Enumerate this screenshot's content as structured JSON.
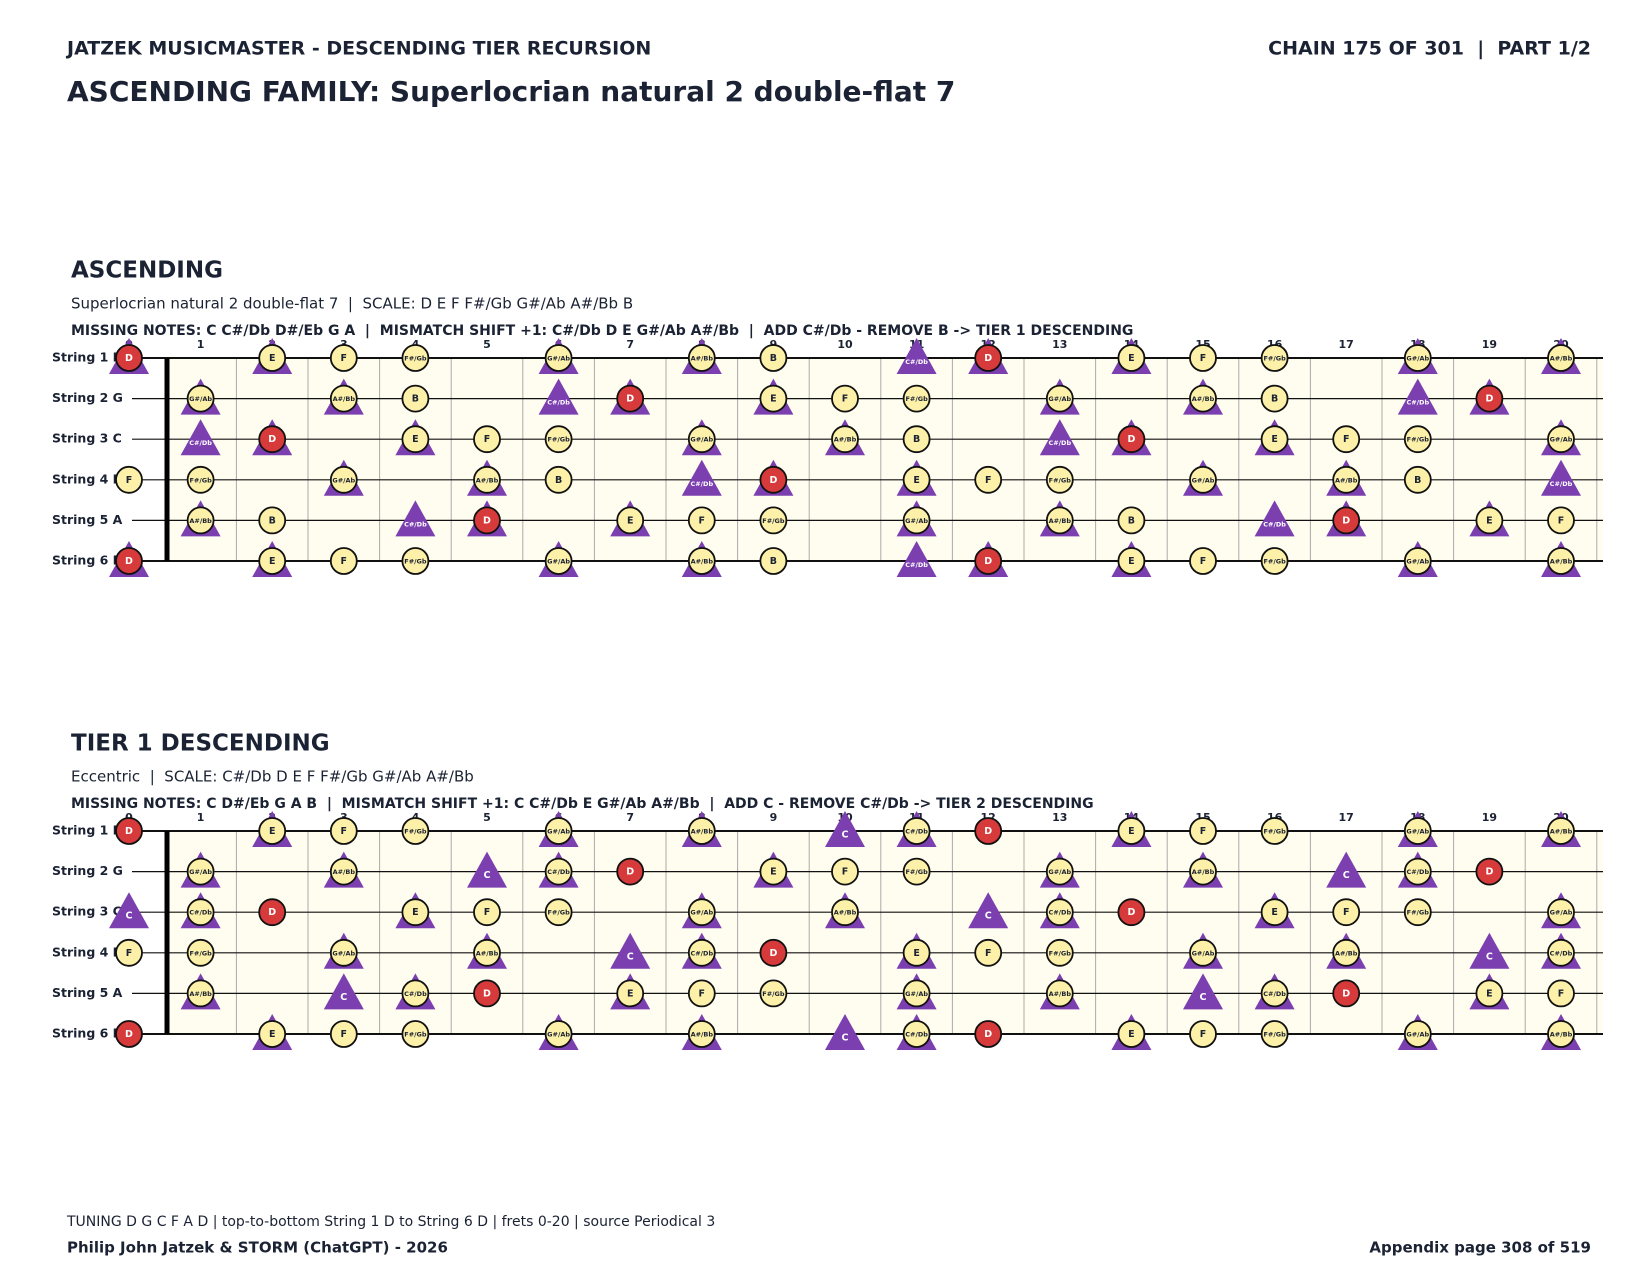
{
  "header": {
    "title": "JATZEK MUSICMASTER - DESCENDING TIER RECURSION",
    "chain": "CHAIN 175 OF 301  |  PART 1/2",
    "family": "ASCENDING FAMILY: Superlocrian natural 2 double-flat 7"
  },
  "diagrams": [
    {
      "title": "ASCENDING",
      "subtitle": "Superlocrian natural 2 double-flat 7  |  SCALE: D E F F#/Gb G#/Ab A#/Bb B",
      "notes_line": "MISSING NOTES: C C#/Db D#/Eb G A  |  MISMATCH SHIFT +1: C#/Db D E G#/Ab A#/Bb  |  ADD C#/Db - REMOVE B -> TIER 1 DESCENDING",
      "frets": [
        0,
        1,
        2,
        3,
        4,
        5,
        6,
        7,
        8,
        9,
        10,
        11,
        12,
        13,
        14,
        15,
        16,
        17,
        18,
        19,
        20
      ],
      "strings": [
        "String 1 D",
        "String 2 G",
        "String 3 C",
        "String 4 F",
        "String 5 A",
        "String 6 D"
      ],
      "cells": [
        [
          {
            "note": "D",
            "mark": "root-shift"
          },
          null,
          {
            "note": "E",
            "mark": "scale-shift"
          },
          {
            "note": "F",
            "mark": "scale"
          },
          {
            "note": "F#/Gb",
            "mark": "scale"
          },
          null,
          {
            "note": "G#/Ab",
            "mark": "scale-shift"
          },
          null,
          {
            "note": "A#/Bb",
            "mark": "scale-shift"
          },
          {
            "note": "B",
            "mark": "scale"
          },
          null,
          {
            "note": "C#/Db",
            "mark": "shift"
          },
          {
            "note": "D",
            "mark": "root-shift"
          },
          null,
          {
            "note": "E",
            "mark": "scale-shift"
          },
          {
            "note": "F",
            "mark": "scale"
          },
          {
            "note": "F#/Gb",
            "mark": "scale"
          },
          null,
          {
            "note": "G#/Ab",
            "mark": "scale-shift"
          },
          null,
          {
            "note": "A#/Bb",
            "mark": "scale-shift"
          }
        ],
        [
          null,
          {
            "note": "G#/Ab",
            "mark": "scale-shift"
          },
          null,
          {
            "note": "A#/Bb",
            "mark": "scale-shift"
          },
          {
            "note": "B",
            "mark": "scale"
          },
          null,
          {
            "note": "C#/Db",
            "mark": "shift"
          },
          {
            "note": "D",
            "mark": "root-shift"
          },
          null,
          {
            "note": "E",
            "mark": "scale-shift"
          },
          {
            "note": "F",
            "mark": "scale"
          },
          {
            "note": "F#/Gb",
            "mark": "scale"
          },
          null,
          {
            "note": "G#/Ab",
            "mark": "scale-shift"
          },
          null,
          {
            "note": "A#/Bb",
            "mark": "scale-shift"
          },
          {
            "note": "B",
            "mark": "scale"
          },
          null,
          {
            "note": "C#/Db",
            "mark": "shift"
          },
          {
            "note": "D",
            "mark": "root-shift"
          },
          null
        ],
        [
          null,
          {
            "note": "C#/Db",
            "mark": "shift"
          },
          {
            "note": "D",
            "mark": "root-shift"
          },
          null,
          {
            "note": "E",
            "mark": "scale-shift"
          },
          {
            "note": "F",
            "mark": "scale"
          },
          {
            "note": "F#/Gb",
            "mark": "scale"
          },
          null,
          {
            "note": "G#/Ab",
            "mark": "scale-shift"
          },
          null,
          {
            "note": "A#/Bb",
            "mark": "scale-shift"
          },
          {
            "note": "B",
            "mark": "scale"
          },
          null,
          {
            "note": "C#/Db",
            "mark": "shift"
          },
          {
            "note": "D",
            "mark": "root-shift"
          },
          null,
          {
            "note": "E",
            "mark": "scale-shift"
          },
          {
            "note": "F",
            "mark": "scale"
          },
          {
            "note": "F#/Gb",
            "mark": "scale"
          },
          null,
          {
            "note": "G#/Ab",
            "mark": "scale-shift"
          }
        ],
        [
          {
            "note": "F",
            "mark": "scale"
          },
          {
            "note": "F#/Gb",
            "mark": "scale"
          },
          null,
          {
            "note": "G#/Ab",
            "mark": "scale-shift"
          },
          null,
          {
            "note": "A#/Bb",
            "mark": "scale-shift"
          },
          {
            "note": "B",
            "mark": "scale"
          },
          null,
          {
            "note": "C#/Db",
            "mark": "shift"
          },
          {
            "note": "D",
            "mark": "root-shift"
          },
          null,
          {
            "note": "E",
            "mark": "scale-shift"
          },
          {
            "note": "F",
            "mark": "scale"
          },
          {
            "note": "F#/Gb",
            "mark": "scale"
          },
          null,
          {
            "note": "G#/Ab",
            "mark": "scale-shift"
          },
          null,
          {
            "note": "A#/Bb",
            "mark": "scale-shift"
          },
          {
            "note": "B",
            "mark": "scale"
          },
          null,
          {
            "note": "C#/Db",
            "mark": "shift"
          }
        ],
        [
          null,
          {
            "note": "A#/Bb",
            "mark": "scale-shift"
          },
          {
            "note": "B",
            "mark": "scale"
          },
          null,
          {
            "note": "C#/Db",
            "mark": "shift"
          },
          {
            "note": "D",
            "mark": "root-shift"
          },
          null,
          {
            "note": "E",
            "mark": "scale-shift"
          },
          {
            "note": "F",
            "mark": "scale"
          },
          {
            "note": "F#/Gb",
            "mark": "scale"
          },
          null,
          {
            "note": "G#/Ab",
            "mark": "scale-shift"
          },
          null,
          {
            "note": "A#/Bb",
            "mark": "scale-shift"
          },
          {
            "note": "B",
            "mark": "scale"
          },
          null,
          {
            "note": "C#/Db",
            "mark": "shift"
          },
          {
            "note": "D",
            "mark": "root-shift"
          },
          null,
          {
            "note": "E",
            "mark": "scale-shift"
          },
          {
            "note": "F",
            "mark": "scale"
          }
        ],
        [
          {
            "note": "D",
            "mark": "root-shift"
          },
          null,
          {
            "note": "E",
            "mark": "scale-shift"
          },
          {
            "note": "F",
            "mark": "scale"
          },
          {
            "note": "F#/Gb",
            "mark": "scale"
          },
          null,
          {
            "note": "G#/Ab",
            "mark": "scale-shift"
          },
          null,
          {
            "note": "A#/Bb",
            "mark": "scale-shift"
          },
          {
            "note": "B",
            "mark": "scale"
          },
          null,
          {
            "note": "C#/Db",
            "mark": "shift"
          },
          {
            "note": "D",
            "mark": "root-shift"
          },
          null,
          {
            "note": "E",
            "mark": "scale-shift"
          },
          {
            "note": "F",
            "mark": "scale"
          },
          {
            "note": "F#/Gb",
            "mark": "scale"
          },
          null,
          {
            "note": "G#/Ab",
            "mark": "scale-shift"
          },
          null,
          {
            "note": "A#/Bb",
            "mark": "scale-shift"
          }
        ]
      ]
    },
    {
      "title": "TIER 1 DESCENDING",
      "subtitle": "Eccentric  |  SCALE: C#/Db D E F F#/Gb G#/Ab A#/Bb",
      "notes_line": "MISSING NOTES: C D#/Eb G A B  |  MISMATCH SHIFT +1: C C#/Db E G#/Ab A#/Bb  |  ADD C - REMOVE C#/Db -> TIER 2 DESCENDING",
      "frets": [
        0,
        1,
        2,
        3,
        4,
        5,
        6,
        7,
        8,
        9,
        10,
        11,
        12,
        13,
        14,
        15,
        16,
        17,
        18,
        19,
        20
      ],
      "strings": [
        "String 1 D",
        "String 2 G",
        "String 3 C",
        "String 4 F",
        "String 5 A",
        "String 6 D"
      ],
      "cells": [
        [
          {
            "note": "D",
            "mark": "root"
          },
          null,
          {
            "note": "E",
            "mark": "scale-shift"
          },
          {
            "note": "F",
            "mark": "scale"
          },
          {
            "note": "F#/Gb",
            "mark": "scale"
          },
          null,
          {
            "note": "G#/Ab",
            "mark": "scale-shift"
          },
          null,
          {
            "note": "A#/Bb",
            "mark": "scale-shift"
          },
          null,
          {
            "note": "C",
            "mark": "shift"
          },
          {
            "note": "C#/Db",
            "mark": "scale-shift"
          },
          {
            "note": "D",
            "mark": "root"
          },
          null,
          {
            "note": "E",
            "mark": "scale-shift"
          },
          {
            "note": "F",
            "mark": "scale"
          },
          {
            "note": "F#/Gb",
            "mark": "scale"
          },
          null,
          {
            "note": "G#/Ab",
            "mark": "scale-shift"
          },
          null,
          {
            "note": "A#/Bb",
            "mark": "scale-shift"
          }
        ],
        [
          null,
          {
            "note": "G#/Ab",
            "mark": "scale-shift"
          },
          null,
          {
            "note": "A#/Bb",
            "mark": "scale-shift"
          },
          null,
          {
            "note": "C",
            "mark": "shift"
          },
          {
            "note": "C#/Db",
            "mark": "scale-shift"
          },
          {
            "note": "D",
            "mark": "root"
          },
          null,
          {
            "note": "E",
            "mark": "scale-shift"
          },
          {
            "note": "F",
            "mark": "scale"
          },
          {
            "note": "F#/Gb",
            "mark": "scale"
          },
          null,
          {
            "note": "G#/Ab",
            "mark": "scale-shift"
          },
          null,
          {
            "note": "A#/Bb",
            "mark": "scale-shift"
          },
          null,
          {
            "note": "C",
            "mark": "shift"
          },
          {
            "note": "C#/Db",
            "mark": "scale-shift"
          },
          {
            "note": "D",
            "mark": "root"
          },
          null
        ],
        [
          {
            "note": "C",
            "mark": "shift"
          },
          {
            "note": "C#/Db",
            "mark": "scale-shift"
          },
          {
            "note": "D",
            "mark": "root"
          },
          null,
          {
            "note": "E",
            "mark": "scale-shift"
          },
          {
            "note": "F",
            "mark": "scale"
          },
          {
            "note": "F#/Gb",
            "mark": "scale"
          },
          null,
          {
            "note": "G#/Ab",
            "mark": "scale-shift"
          },
          null,
          {
            "note": "A#/Bb",
            "mark": "scale-shift"
          },
          null,
          {
            "note": "C",
            "mark": "shift"
          },
          {
            "note": "C#/Db",
            "mark": "scale-shift"
          },
          {
            "note": "D",
            "mark": "root"
          },
          null,
          {
            "note": "E",
            "mark": "scale-shift"
          },
          {
            "note": "F",
            "mark": "scale"
          },
          {
            "note": "F#/Gb",
            "mark": "scale"
          },
          null,
          {
            "note": "G#/Ab",
            "mark": "scale-shift"
          }
        ],
        [
          {
            "note": "F",
            "mark": "scale"
          },
          {
            "note": "F#/Gb",
            "mark": "scale"
          },
          null,
          {
            "note": "G#/Ab",
            "mark": "scale-shift"
          },
          null,
          {
            "note": "A#/Bb",
            "mark": "scale-shift"
          },
          null,
          {
            "note": "C",
            "mark": "shift"
          },
          {
            "note": "C#/Db",
            "mark": "scale-shift"
          },
          {
            "note": "D",
            "mark": "root"
          },
          null,
          {
            "note": "E",
            "mark": "scale-shift"
          },
          {
            "note": "F",
            "mark": "scale"
          },
          {
            "note": "F#/Gb",
            "mark": "scale"
          },
          null,
          {
            "note": "G#/Ab",
            "mark": "scale-shift"
          },
          null,
          {
            "note": "A#/Bb",
            "mark": "scale-shift"
          },
          null,
          {
            "note": "C",
            "mark": "shift"
          },
          {
            "note": "C#/Db",
            "mark": "scale-shift"
          }
        ],
        [
          null,
          {
            "note": "A#/Bb",
            "mark": "scale-shift"
          },
          null,
          {
            "note": "C",
            "mark": "shift"
          },
          {
            "note": "C#/Db",
            "mark": "scale-shift"
          },
          {
            "note": "D",
            "mark": "root"
          },
          null,
          {
            "note": "E",
            "mark": "scale-shift"
          },
          {
            "note": "F",
            "mark": "scale"
          },
          {
            "note": "F#/Gb",
            "mark": "scale"
          },
          null,
          {
            "note": "G#/Ab",
            "mark": "scale-shift"
          },
          null,
          {
            "note": "A#/Bb",
            "mark": "scale-shift"
          },
          null,
          {
            "note": "C",
            "mark": "shift"
          },
          {
            "note": "C#/Db",
            "mark": "scale-shift"
          },
          {
            "note": "D",
            "mark": "root"
          },
          null,
          {
            "note": "E",
            "mark": "scale-shift"
          },
          {
            "note": "F",
            "mark": "scale"
          }
        ],
        [
          {
            "note": "D",
            "mark": "root"
          },
          null,
          {
            "note": "E",
            "mark": "scale-shift"
          },
          {
            "note": "F",
            "mark": "scale"
          },
          {
            "note": "F#/Gb",
            "mark": "scale"
          },
          null,
          {
            "note": "G#/Ab",
            "mark": "scale-shift"
          },
          null,
          {
            "note": "A#/Bb",
            "mark": "scale-shift"
          },
          null,
          {
            "note": "C",
            "mark": "shift"
          },
          {
            "note": "C#/Db",
            "mark": "scale-shift"
          },
          {
            "note": "D",
            "mark": "root"
          },
          null,
          {
            "note": "E",
            "mark": "scale-shift"
          },
          {
            "note": "F",
            "mark": "scale"
          },
          {
            "note": "F#/Gb",
            "mark": "scale"
          },
          null,
          {
            "note": "G#/Ab",
            "mark": "scale-shift"
          },
          null,
          {
            "note": "A#/Bb",
            "mark": "scale-shift"
          }
        ]
      ]
    }
  ],
  "footer": {
    "tuning": "TUNING D G C F A D | top-to-bottom String 1 D to String 6 D | frets 0-20 | source Periodical 3",
    "credit": "Philip John Jatzek & STORM (ChatGPT) - 2026",
    "page": "Appendix page 308 of 519"
  }
}
